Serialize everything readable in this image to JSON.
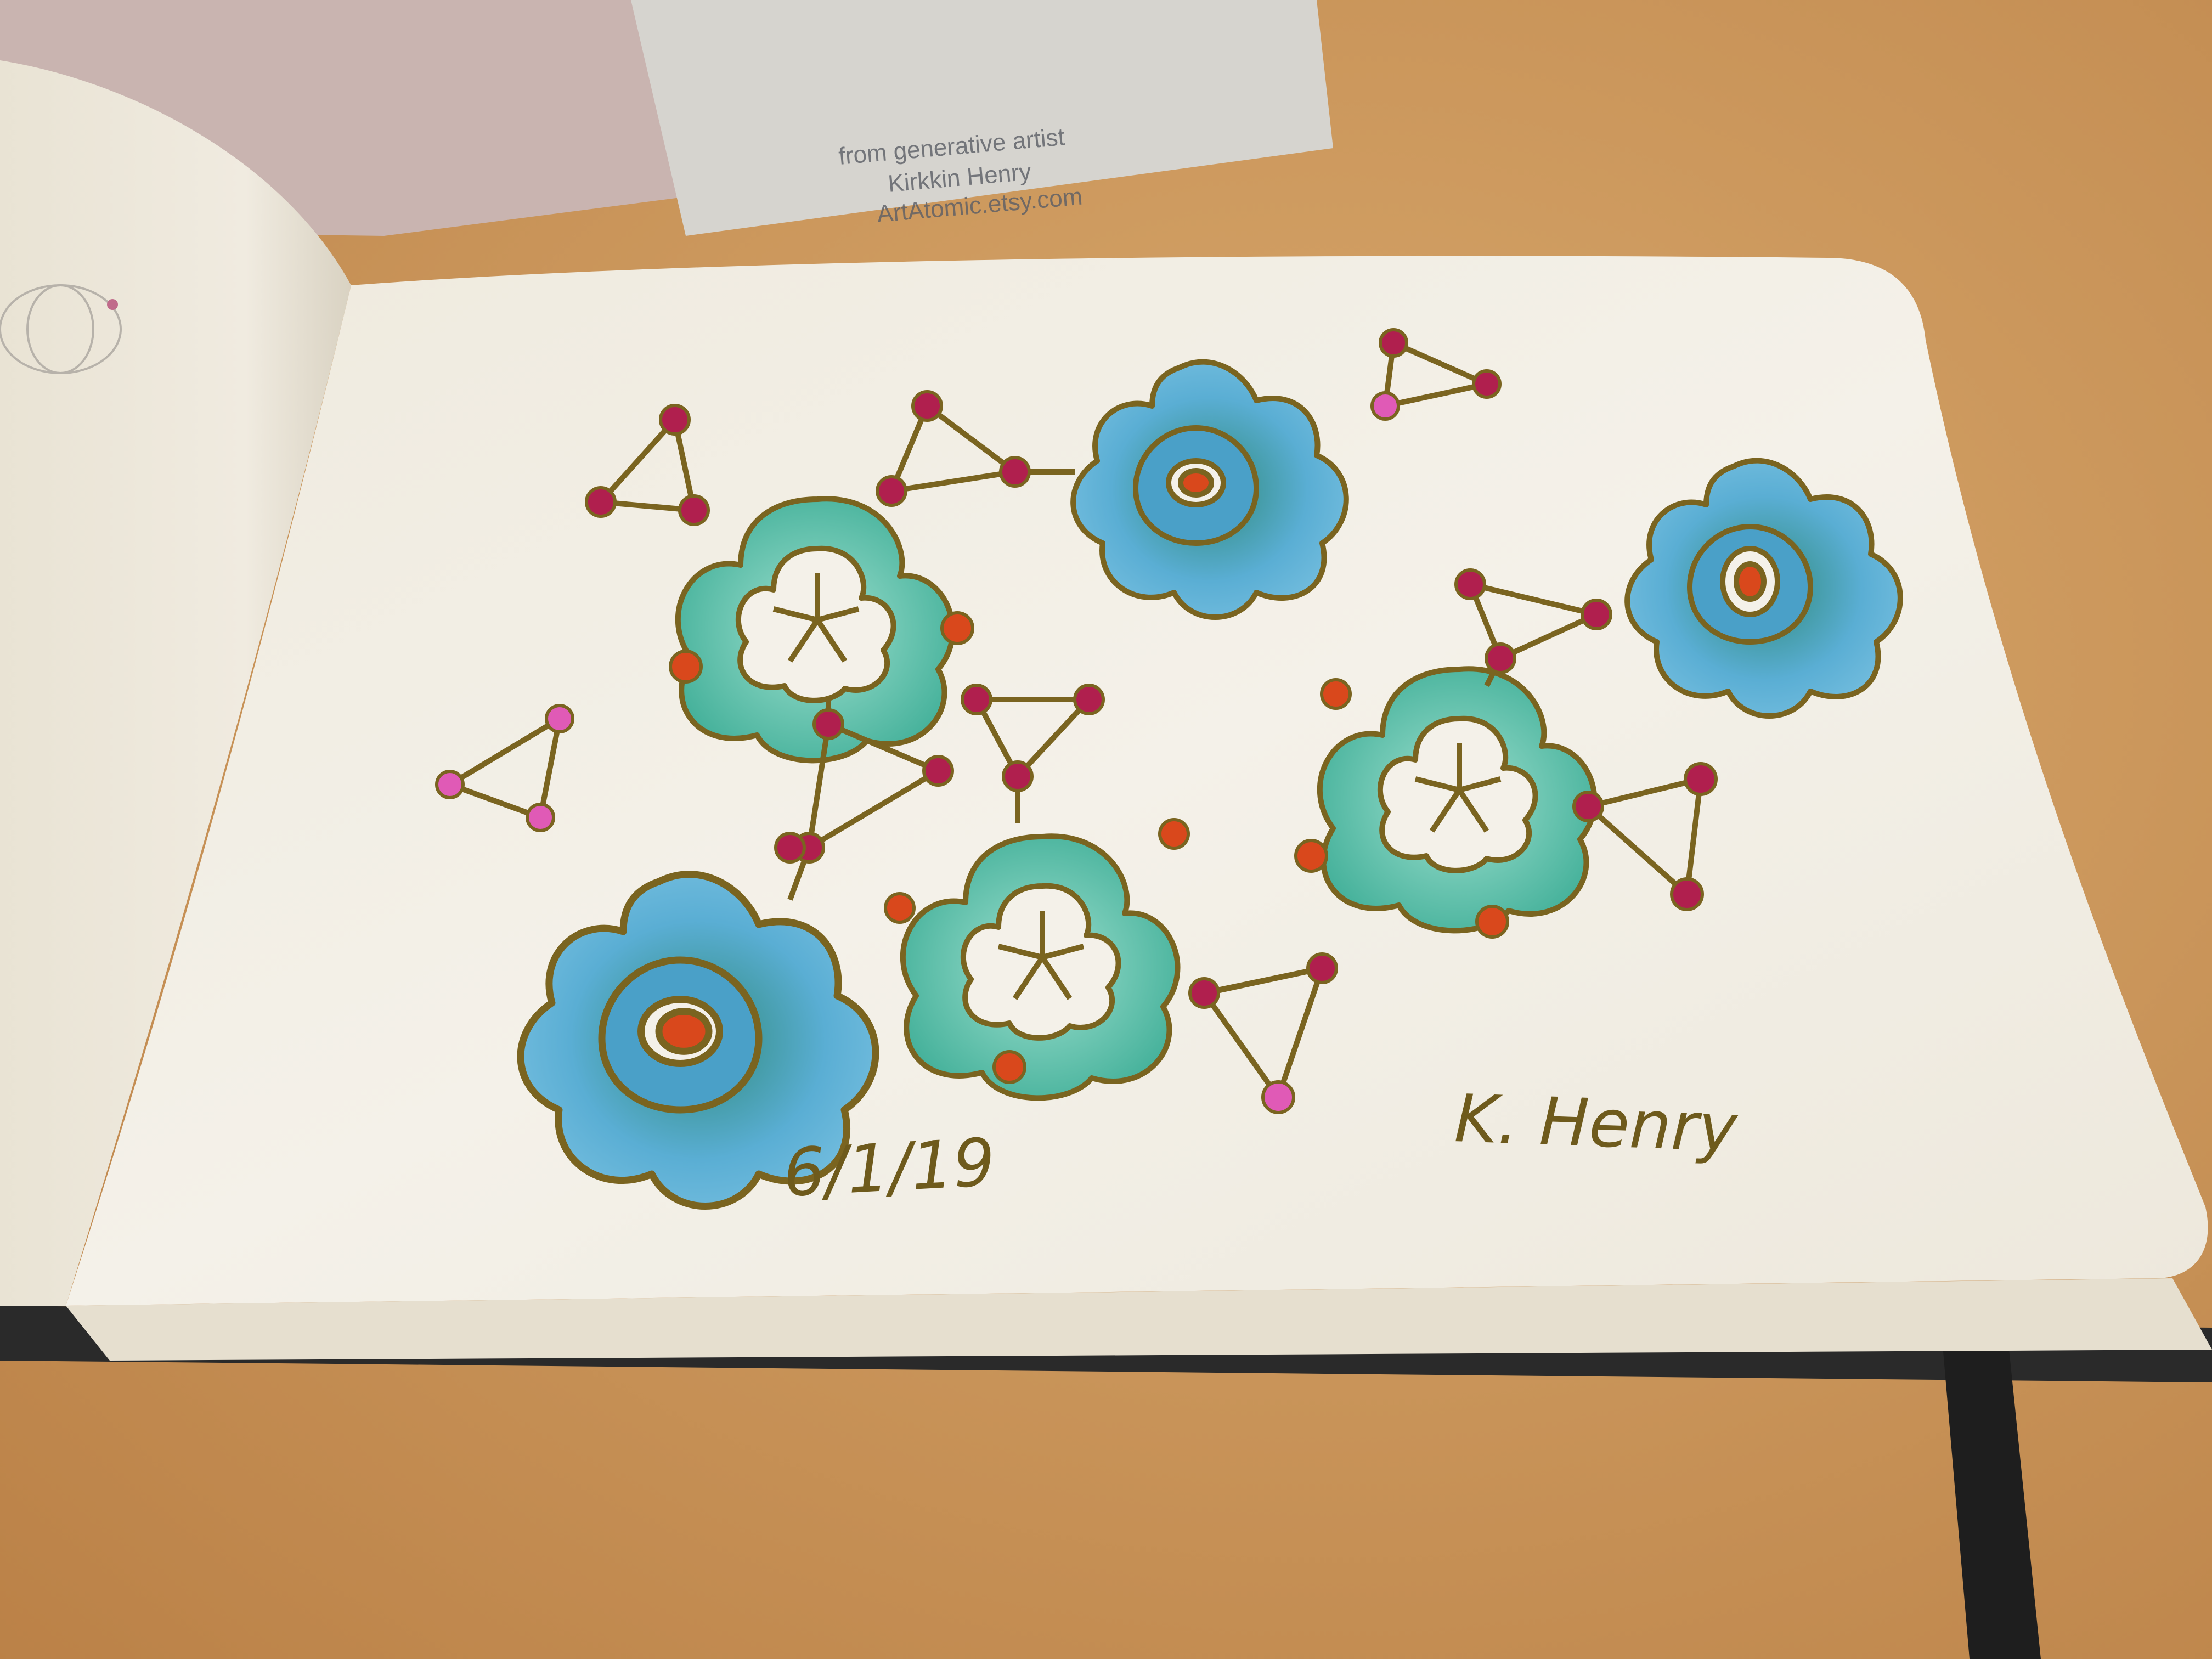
{
  "scene": {
    "description_colors": {
      "table": "#c9955a",
      "page": "#f2efe6",
      "ink_gold": "#7a6420",
      "teal": "#5fc4b2",
      "blue": "#5aa8d0",
      "berry": "#b01f4e",
      "orange": "#d9481c",
      "pink": "#e05ab6"
    }
  },
  "card": {
    "line1": "from generative artist",
    "line2": "Kirkkin Henry",
    "line3": "ArtAtomic.etsy.com"
  },
  "page_text": {
    "date": "6/1/19",
    "signature": "K. Henry"
  }
}
